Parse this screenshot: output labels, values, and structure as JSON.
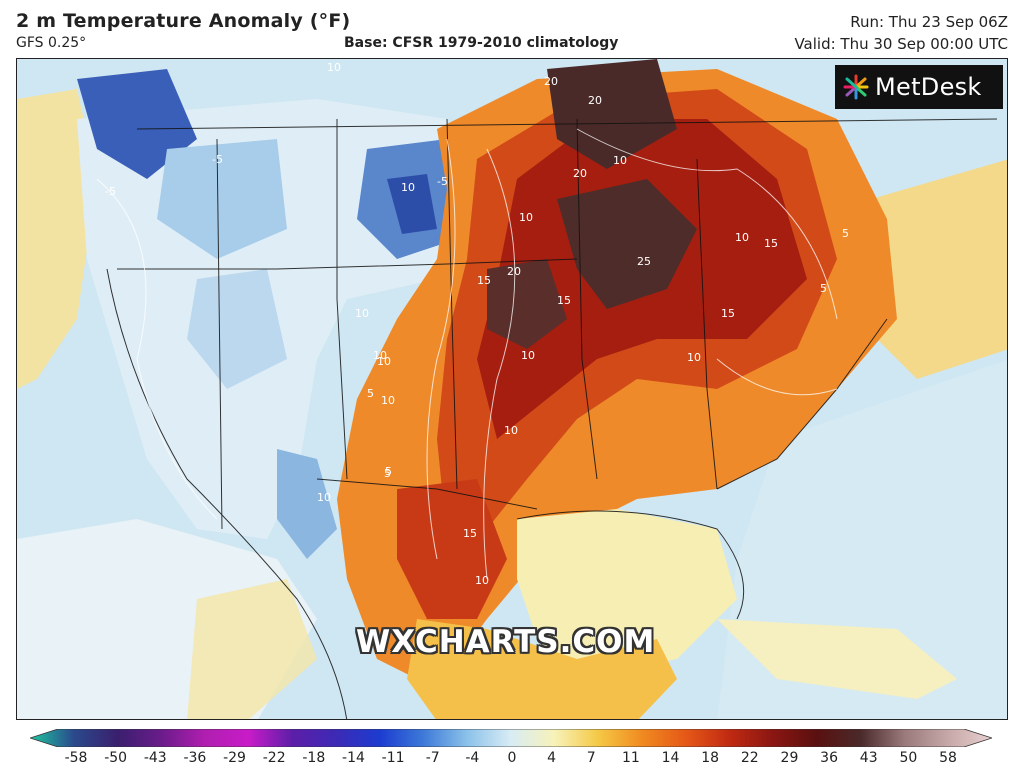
{
  "header": {
    "title": "2 m Temperature Anomaly (°F)",
    "model": "GFS 0.25°",
    "base": "Base: CFSR 1979-2010 climatology",
    "run": "Run: Thu 23 Sep 06Z",
    "valid": "Valid: Thu 30 Sep 00:00 UTC"
  },
  "logo": {
    "text": "MetDesk",
    "icon": "metdesk-sunburst-icon"
  },
  "watermark": "WXCHARTS.COM",
  "colorbar": {
    "ticks": [
      "-58",
      "-50",
      "-43",
      "-36",
      "-29",
      "-22",
      "-18",
      "-14",
      "-11",
      "-7",
      "-4",
      "0",
      "4",
      "7",
      "11",
      "14",
      "18",
      "22",
      "29",
      "36",
      "43",
      "50",
      "58"
    ],
    "colors": [
      "#20c5a0",
      "#2a4a8c",
      "#3a1f6e",
      "#6a1c8a",
      "#b01eb0",
      "#c81cc8",
      "#5c1ea8",
      "#3c2ab6",
      "#1c3cd0",
      "#3e7ad8",
      "#8cc2ea",
      "#d8ecf4",
      "#f7f2b8",
      "#f5c845",
      "#f08a20",
      "#e55818",
      "#c02a12",
      "#8a1612",
      "#5a1010",
      "#4a2a2a",
      "#9a7a7a",
      "#c7a8a8",
      "#e8d0d0"
    ]
  },
  "map": {
    "region": "North America",
    "contour_labels": [
      "10",
      "20",
      "20",
      "10",
      "20",
      "10",
      "25",
      "20",
      "15",
      "10",
      "15",
      "5",
      "5",
      "10",
      "5",
      "10",
      "10",
      "10",
      "15",
      "15",
      "10",
      "10",
      "10",
      "5",
      "10",
      "15",
      "10",
      "5",
      "-5",
      "-5",
      "10",
      "-5"
    ]
  }
}
